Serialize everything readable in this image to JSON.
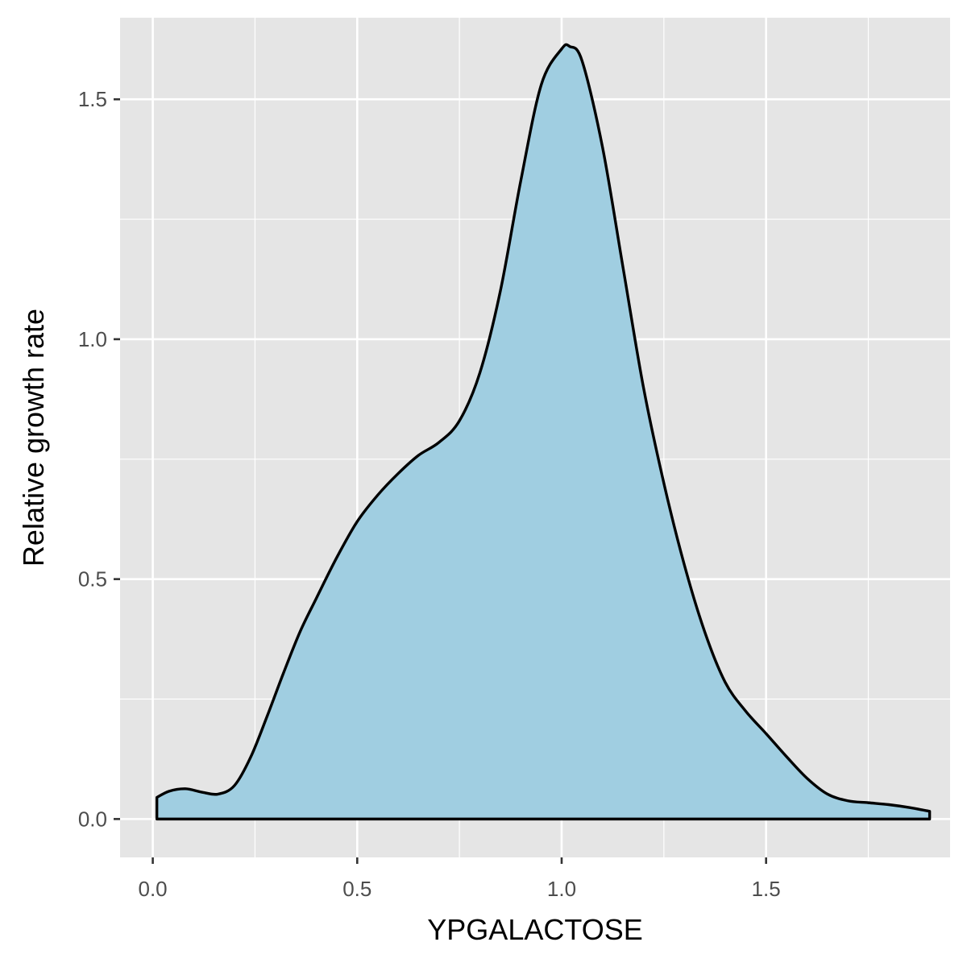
{
  "chart_data": {
    "type": "area",
    "geom": "density",
    "xlabel": "YPGALACTOSE",
    "ylabel": "Relative growth rate",
    "xlim": [
      -0.08,
      1.95
    ],
    "ylim": [
      -0.08,
      1.67
    ],
    "x_ticks": [
      0.0,
      0.5,
      1.0,
      1.5
    ],
    "x_tick_labels": [
      "0.0",
      "0.5",
      "1.0",
      "1.5"
    ],
    "y_ticks": [
      0.0,
      0.5,
      1.0,
      1.5
    ],
    "y_tick_labels": [
      "0.0",
      "0.5",
      "1.0",
      "1.5"
    ],
    "x_minor_ticks": [
      0.25,
      0.75,
      1.25,
      1.75
    ],
    "y_minor_ticks": [
      0.25,
      0.75,
      1.25
    ],
    "grid": true,
    "legend": "none",
    "colors": {
      "panel_background": "#e5e5e5",
      "grid": "#ffffff",
      "fill": "#a0cee1",
      "outline": "#000000"
    },
    "points": {
      "x": [
        0.01,
        0.04,
        0.08,
        0.12,
        0.16,
        0.2,
        0.24,
        0.28,
        0.32,
        0.36,
        0.4,
        0.45,
        0.5,
        0.55,
        0.6,
        0.65,
        0.7,
        0.75,
        0.8,
        0.85,
        0.9,
        0.95,
        1.0,
        1.02,
        1.05,
        1.1,
        1.15,
        1.2,
        1.25,
        1.3,
        1.35,
        1.4,
        1.45,
        1.5,
        1.55,
        1.6,
        1.65,
        1.7,
        1.75,
        1.8,
        1.85,
        1.9
      ],
      "y": [
        0.045,
        0.058,
        0.063,
        0.056,
        0.052,
        0.07,
        0.13,
        0.215,
        0.305,
        0.39,
        0.46,
        0.545,
        0.62,
        0.675,
        0.72,
        0.758,
        0.785,
        0.83,
        0.93,
        1.1,
        1.33,
        1.53,
        1.605,
        1.61,
        1.58,
        1.4,
        1.15,
        0.9,
        0.7,
        0.53,
        0.39,
        0.285,
        0.225,
        0.178,
        0.13,
        0.085,
        0.052,
        0.038,
        0.034,
        0.03,
        0.024,
        0.016
      ]
    }
  }
}
